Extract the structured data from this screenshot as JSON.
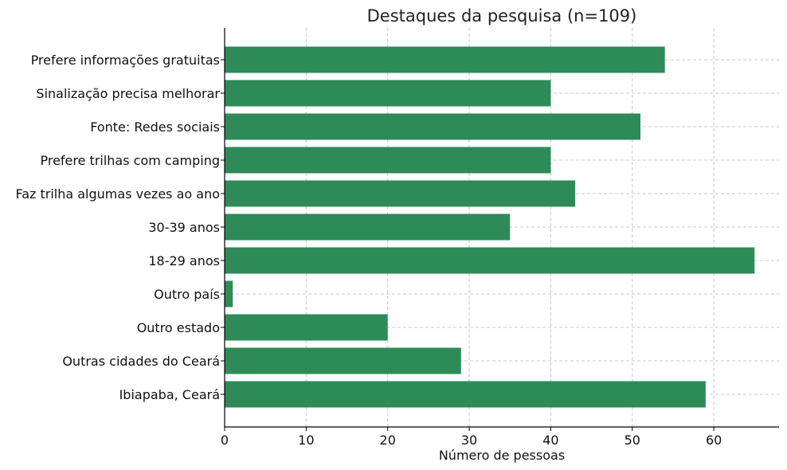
{
  "chart_data": {
    "type": "bar",
    "orientation": "horizontal",
    "title": "Destaques da pesquisa (n=109)",
    "xlabel": "Número de pessoas",
    "ylabel": "",
    "xlim": [
      0,
      68
    ],
    "xticks": [
      0,
      10,
      20,
      30,
      40,
      50,
      60
    ],
    "grid": true,
    "bar_color": "#2e8b57",
    "categories": [
      "Ibiapaba, Ceará",
      "Outras cidades do Ceará",
      "Outro estado",
      "Outro país",
      "18-29 anos",
      "30-39 anos",
      "Faz trilha algumas vezes ao ano",
      "Prefere trilhas com camping",
      "Fonte: Redes sociais",
      "Sinalização precisa melhorar",
      "Prefere informações gratuitas"
    ],
    "values": [
      59,
      29,
      20,
      1,
      65,
      35,
      43,
      40,
      51,
      40,
      54
    ]
  }
}
